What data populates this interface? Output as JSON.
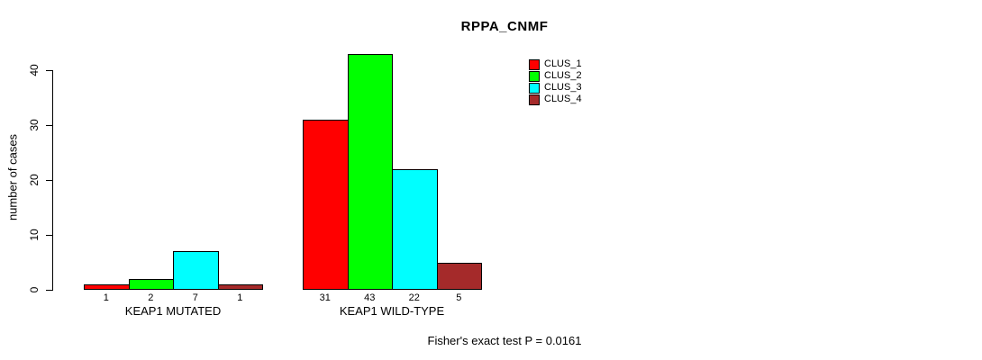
{
  "chart_data": {
    "type": "bar",
    "title": "RPPA_CNMF",
    "xlabel": "",
    "ylabel": "number of cases",
    "ylim": [
      0,
      40
    ],
    "yticks": [
      0,
      10,
      20,
      30,
      40
    ],
    "grid": false,
    "legend_position": "top-right",
    "categories": [
      "KEAP1 MUTATED",
      "KEAP1 WILD-TYPE"
    ],
    "series": [
      {
        "name": "CLUS_1",
        "color": "#ff0000",
        "values": [
          1,
          31
        ]
      },
      {
        "name": "CLUS_2",
        "color": "#00ff00",
        "values": [
          2,
          43
        ]
      },
      {
        "name": "CLUS_3",
        "color": "#00ffff",
        "values": [
          7,
          22
        ]
      },
      {
        "name": "CLUS_4",
        "color": "#a52a2a",
        "values": [
          1,
          5
        ]
      }
    ],
    "bar_value_labels": {
      "KEAP1 MUTATED": [
        1,
        2,
        7,
        1
      ],
      "KEAP1 WILD-TYPE": [
        31,
        43,
        22,
        5
      ]
    },
    "annotation": "Fisher's exact test P = 0.0161"
  }
}
